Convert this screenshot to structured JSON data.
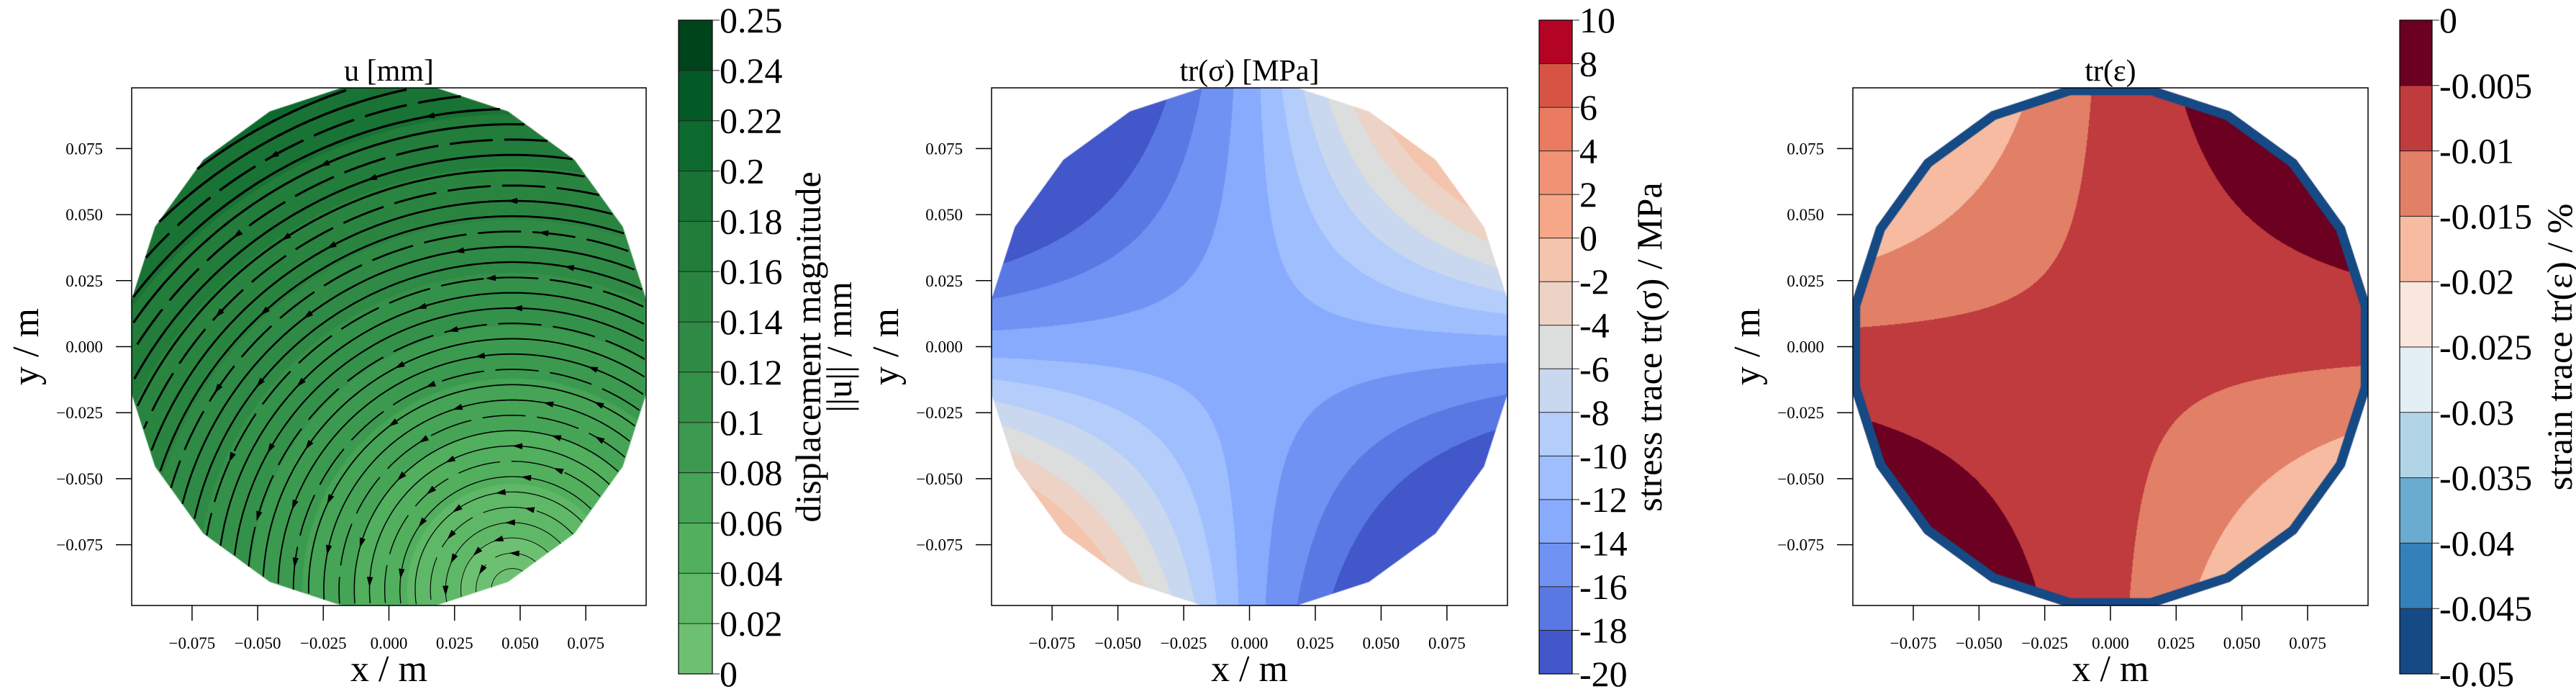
{
  "chart_data": [
    {
      "type": "heatmap",
      "plot_kind": "filled contour with streamlines",
      "title": "u [mm]",
      "xlabel": "x / m",
      "ylabel": "y / m",
      "xlim": [
        -0.098,
        0.098
      ],
      "ylim": [
        -0.098,
        0.098
      ],
      "xticks": [
        -0.075,
        -0.05,
        -0.025,
        0,
        0.025,
        0.05,
        0.075
      ],
      "xtick_labels": [
        "−0.075",
        "−0.050",
        "−0.025",
        "0.000",
        "0.025",
        "0.050",
        "0.075"
      ],
      "yticks": [
        -0.075,
        -0.05,
        -0.025,
        0,
        0.025,
        0.05,
        0.075
      ],
      "ytick_labels": [
        "−0.075",
        "−0.050",
        "−0.025",
        "0.000",
        "0.025",
        "0.050",
        "0.075"
      ],
      "grid": false,
      "streamlines": true,
      "streamline_color": "#000000",
      "colormap": "Greens",
      "colorbar": {
        "label_lines": [
          "displacement magnitude",
          "||u|| / mm"
        ],
        "levels": [
          0,
          0.02,
          0.04,
          0.06,
          0.08,
          0.1,
          0.12,
          0.14,
          0.16,
          0.18,
          0.2,
          0.22,
          0.24,
          0.25
        ],
        "tick_labels": [
          "0",
          "0.02",
          "0.04",
          "0.06",
          "0.08",
          "0.1",
          "0.12",
          "0.14",
          "0.16",
          "0.18",
          "0.2",
          "0.22",
          "0.24",
          "0.25"
        ],
        "colors": [
          "#6dc071",
          "#5fb867",
          "#51af5e",
          "#45a456",
          "#3b9a4f",
          "#349149",
          "#2e8a44",
          "#29843f",
          "#227c3a",
          "#187334",
          "#0d6a2e",
          "#035a27",
          "#00441b"
        ]
      }
    },
    {
      "type": "heatmap",
      "plot_kind": "filled contour",
      "title": "tr(σ) [MPa]",
      "xlabel": "x / m",
      "ylabel": "y / m",
      "xlim": [
        -0.098,
        0.098
      ],
      "ylim": [
        -0.098,
        0.098
      ],
      "xticks": [
        -0.075,
        -0.05,
        -0.025,
        0,
        0.025,
        0.05,
        0.075
      ],
      "xtick_labels": [
        "−0.075",
        "−0.050",
        "−0.025",
        "0.000",
        "0.025",
        "0.050",
        "0.075"
      ],
      "yticks": [
        -0.075,
        -0.05,
        -0.025,
        0,
        0.025,
        0.05,
        0.075
      ],
      "ytick_labels": [
        "−0.075",
        "−0.050",
        "−0.025",
        "0.000",
        "0.025",
        "0.050",
        "0.075"
      ],
      "grid": false,
      "colormap": "coolwarm",
      "colorbar": {
        "label_lines": [
          "stress trace tr(σ) / MPa"
        ],
        "levels": [
          -20,
          -18,
          -16,
          -14,
          -12,
          -10,
          -8,
          -6,
          -4,
          -2,
          0,
          2,
          4,
          6,
          8,
          10
        ],
        "tick_labels": [
          "-20",
          "-18",
          "-16",
          "-14",
          "-12",
          "-10",
          "-8",
          "-6",
          "-4",
          "-2",
          "0",
          "2",
          "4",
          "6",
          "8",
          "10"
        ],
        "colors": [
          "#4257c9",
          "#5a78e4",
          "#7093f3",
          "#88abfd",
          "#9fbefe",
          "#b4cdfa",
          "#c9d7ef",
          "#dcdddd",
          "#ecd3c5",
          "#f4c4ad",
          "#f6a788",
          "#f29274",
          "#ea7b60",
          "#d75445",
          "#b40426"
        ]
      }
    },
    {
      "type": "heatmap",
      "plot_kind": "filled contour",
      "title": "tr(ε)",
      "xlabel": "x / m",
      "ylabel": "y / m",
      "xlim": [
        -0.098,
        0.098
      ],
      "ylim": [
        -0.098,
        0.098
      ],
      "xticks": [
        -0.075,
        -0.05,
        -0.025,
        0,
        0.025,
        0.05,
        0.075
      ],
      "xtick_labels": [
        "−0.075",
        "−0.050",
        "−0.025",
        "0.000",
        "0.025",
        "0.050",
        "0.075"
      ],
      "yticks": [
        -0.075,
        -0.05,
        -0.025,
        0,
        0.025,
        0.05,
        0.075
      ],
      "ytick_labels": [
        "−0.075",
        "−0.050",
        "−0.025",
        "0.000",
        "0.025",
        "0.050",
        "0.075"
      ],
      "grid": false,
      "colormap": "RdBu_r",
      "colorbar": {
        "label_lines": [
          "strain trace tr(ε) / %"
        ],
        "levels": [
          -0.05,
          -0.045,
          -0.04,
          -0.035,
          -0.03,
          -0.025,
          -0.02,
          -0.015,
          -0.01,
          -0.005,
          0
        ],
        "tick_labels": [
          "-0.05",
          "-0.045",
          "-0.04",
          "-0.035",
          "-0.03",
          "-0.025",
          "-0.02",
          "-0.015",
          "-0.01",
          "-0.005",
          "0"
        ],
        "colors": [
          "#154a85",
          "#3480b9",
          "#6aacd0",
          "#b1d5e7",
          "#e4eef5",
          "#f9e7dd",
          "#f6bba0",
          "#e27f67",
          "#c03b3d",
          "#6b0020"
        ]
      }
    }
  ]
}
